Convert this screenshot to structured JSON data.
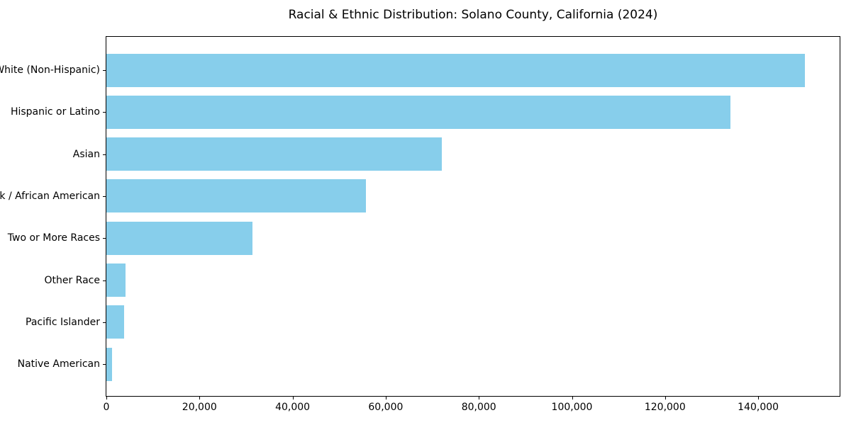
{
  "figure": {
    "background": "#ffffff",
    "text_color": "#000000"
  },
  "chart_data": {
    "type": "bar",
    "orientation": "horizontal",
    "title": "Racial & Ethnic Distribution: Solano County, California (2024)",
    "categories": [
      "White (Non-Hispanic)",
      "Hispanic or Latino",
      "Asian",
      "Black / African American",
      "Two or More Races",
      "Other Race",
      "Pacific Islander",
      "Native American"
    ],
    "values": [
      150000,
      134000,
      72000,
      55800,
      31400,
      4100,
      3800,
      1200
    ],
    "xlabel": "",
    "ylabel": "",
    "xlim": [
      0,
      157500
    ],
    "xticks": [
      0,
      20000,
      40000,
      60000,
      80000,
      100000,
      120000,
      140000
    ],
    "xtick_labels": [
      "0",
      "20,000",
      "40,000",
      "60,000",
      "80,000",
      "100,000",
      "120,000",
      "140,000"
    ],
    "bar_color": "#87CEEB",
    "grid": false,
    "legend": null
  }
}
